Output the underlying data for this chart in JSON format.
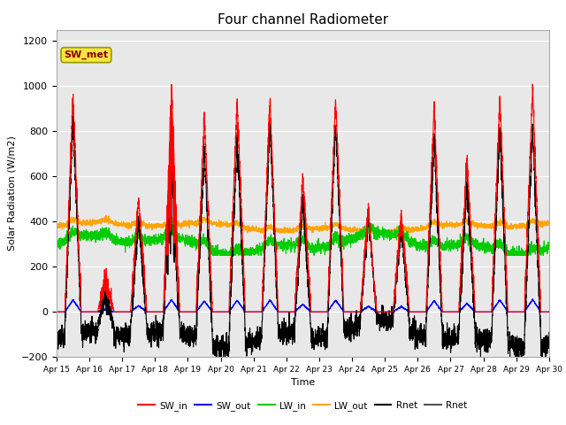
{
  "title": "Four channel Radiometer",
  "xlabel": "Time",
  "ylabel": "Solar Radiation (W/m2)",
  "ylim": [
    -200,
    1250
  ],
  "xlim": [
    0,
    15
  ],
  "bg_color": "#e8e8e8",
  "fig_color": "#ffffff",
  "x_tick_labels": [
    "Apr 15",
    "Apr 16",
    "Apr 17",
    "Apr 18",
    "Apr 19",
    "Apr 20",
    "Apr 21",
    "Apr 22",
    "Apr 23",
    "Apr 24",
    "Apr 25",
    "Apr 26",
    "Apr 27",
    "Apr 28",
    "Apr 29",
    "Apr 30"
  ],
  "ytick_labels": [
    "-200",
    "0",
    "200",
    "400",
    "600",
    "800",
    "1000",
    "1200"
  ],
  "annotation_text": "SW_met",
  "annotation_color": "#8b0000",
  "annotation_bg": "#f5e642",
  "sw_in_color": "#ff0000",
  "sw_out_color": "#0000ff",
  "lw_in_color": "#00cc00",
  "lw_out_color": "#ffa500",
  "rnet_color": "#000000",
  "rnet2_color": "#555555",
  "line_width": 0.8
}
